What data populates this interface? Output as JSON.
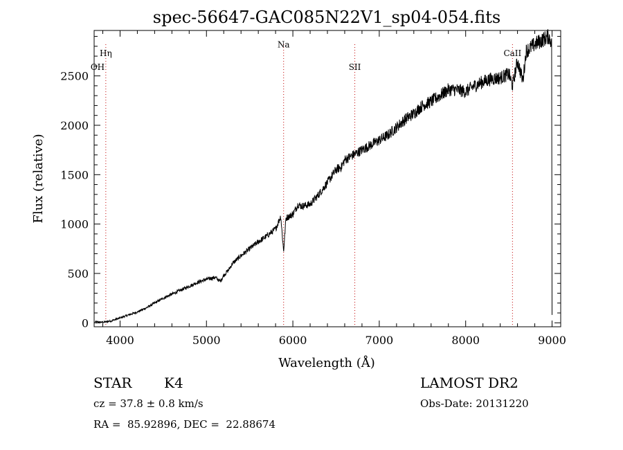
{
  "chart_data": {
    "type": "line",
    "title": "spec-56647-GAC085N22V1_sp04-054.fits",
    "xlabel": "Wavelength (Å)",
    "ylabel": "Flux (relative)",
    "xlim": [
      3700,
      9100
    ],
    "ylim": [
      -40,
      2960
    ],
    "x_ticks": [
      4000,
      5000,
      6000,
      7000,
      8000,
      9000
    ],
    "y_ticks": [
      0,
      500,
      1000,
      1500,
      2000,
      2500
    ],
    "x_tick_labels": [
      "4000",
      "5000",
      "6000",
      "7000",
      "8000",
      "9000"
    ],
    "y_tick_labels": [
      "0",
      "500",
      "1000",
      "1500",
      "2000",
      "2500"
    ],
    "grid": false,
    "series": [
      {
        "x": [
          3710,
          3800,
          3900,
          4000,
          4100,
          4200,
          4300,
          4400,
          4500,
          4600,
          4700,
          4800,
          4900,
          5000,
          5100,
          5160,
          5200,
          5260,
          5300,
          5400,
          5500,
          5600,
          5700,
          5800,
          5860,
          5893,
          5920,
          6000,
          6060,
          6100,
          6200,
          6300,
          6400,
          6500,
          6563,
          6600,
          6700,
          6800,
          6900,
          7000,
          7100,
          7200,
          7300,
          7400,
          7500,
          7600,
          7700,
          7800,
          7900,
          8000,
          8100,
          8200,
          8300,
          8400,
          8500,
          8542,
          8600,
          8662,
          8700,
          8800,
          8900,
          8960,
          8990,
          9000
        ],
        "y": [
          10,
          5,
          20,
          50,
          80,
          110,
          150,
          200,
          250,
          290,
          330,
          370,
          410,
          440,
          460,
          420,
          480,
          540,
          600,
          680,
          750,
          820,
          880,
          950,
          1080,
          720,
          1060,
          1100,
          1200,
          1180,
          1200,
          1300,
          1420,
          1550,
          1580,
          1650,
          1700,
          1750,
          1800,
          1850,
          1900,
          1980,
          2060,
          2120,
          2200,
          2240,
          2300,
          2360,
          2360,
          2340,
          2400,
          2440,
          2470,
          2480,
          2520,
          2400,
          2650,
          2450,
          2750,
          2820,
          2870,
          2900,
          2850,
          80
        ]
      }
    ],
    "annotations": [
      {
        "label": "Hη",
        "x": 3835,
        "y": 2700
      },
      {
        "label": "OH",
        "x": 3740,
        "y": 2560
      },
      {
        "label": "Na",
        "x": 5893,
        "y": 2790
      },
      {
        "label": "SII",
        "x": 6717,
        "y": 2560
      },
      {
        "label": "CaII",
        "x": 8542,
        "y": 2700
      }
    ],
    "line_markers": [
      3835,
      5893,
      6717,
      8542
    ]
  },
  "info": {
    "object_class": "STAR",
    "subclass": "K4",
    "survey": "LAMOST DR2",
    "cz": "cz = 37.8 ± 0.8 km/s",
    "obs_date": "Obs-Date: 20131220",
    "coords": "RA =  85.92896, DEC =  22.88674"
  }
}
